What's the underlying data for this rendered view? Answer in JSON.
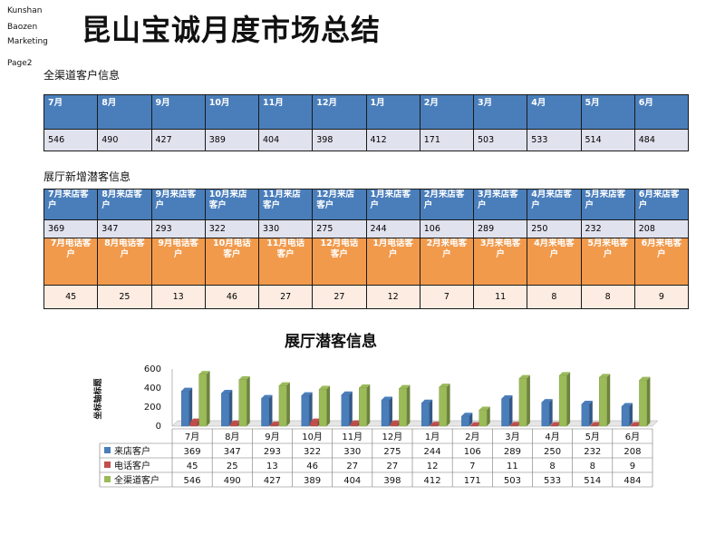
{
  "brand": [
    "Kunshan",
    "Baozen",
    "Marketing",
    "",
    "Page2"
  ],
  "title": "昆山宝诚月度市场总结",
  "section1": {
    "title": "全渠道客户信息",
    "headers": [
      "7月",
      "8月",
      "9月",
      "10月",
      "11月",
      "12月",
      "1月",
      "2月",
      "3月",
      "4月",
      "5月",
      "6月"
    ],
    "values": [
      "546",
      "490",
      "427",
      "389",
      "404",
      "398",
      "412",
      "171",
      "503",
      "533",
      "514",
      "484"
    ]
  },
  "section2": {
    "title": "展厅新增潜客信息",
    "visit_headers": [
      "7月来店客户",
      "8月来店客户",
      "9月来店客户",
      "10月来店客户",
      "11月来店客户",
      "12月来店客户",
      "1月来店客户",
      "2月来店客户",
      "3月来店客户",
      "4月来店客户",
      "5月来店客户",
      "6月来店客户"
    ],
    "visit_values": [
      "369",
      "347",
      "293",
      "322",
      "330",
      "275",
      "244",
      "106",
      "289",
      "250",
      "232",
      "208"
    ],
    "phone_headers": [
      "7月电话客户",
      "8月电话客户",
      "9月电话客户",
      "10月电话客户",
      "11月电话客户",
      "12月电话客户",
      "1月电话客户",
      "2月来电客户",
      "3月来电客户",
      "4月来电客户",
      "5月来电客户",
      "6月来电客户"
    ],
    "phone_values": [
      "45",
      "25",
      "13",
      "46",
      "27",
      "27",
      "12",
      "7",
      "11",
      "8",
      "8",
      "9"
    ]
  },
  "colors": {
    "blue": "#4a7ebb",
    "red": "#c0504d",
    "green": "#9bbb59",
    "orange": "#f29a4c"
  },
  "chart_data": {
    "type": "bar",
    "title": "展厅潜客信息",
    "ylabel": "坐标轴标题",
    "xlabel": "",
    "ylim": [
      0,
      600
    ],
    "yticks": [
      0,
      200,
      400,
      600
    ],
    "categories": [
      "7月",
      "8月",
      "9月",
      "10月",
      "11月",
      "12月",
      "1月",
      "2月",
      "3月",
      "4月",
      "5月",
      "6月"
    ],
    "series": [
      {
        "name": "来店客户",
        "color": "#4a7ebb",
        "values": [
          369,
          347,
          293,
          322,
          330,
          275,
          244,
          106,
          289,
          250,
          232,
          208
        ]
      },
      {
        "name": "电话客户",
        "color": "#c0504d",
        "values": [
          45,
          25,
          13,
          46,
          27,
          27,
          12,
          7,
          11,
          8,
          8,
          9
        ]
      },
      {
        "name": "全渠道客户",
        "color": "#9bbb59",
        "values": [
          546,
          490,
          427,
          389,
          404,
          398,
          412,
          171,
          503,
          533,
          514,
          484
        ]
      }
    ],
    "data_table": true,
    "grid": false,
    "legend": "in-data-table"
  }
}
